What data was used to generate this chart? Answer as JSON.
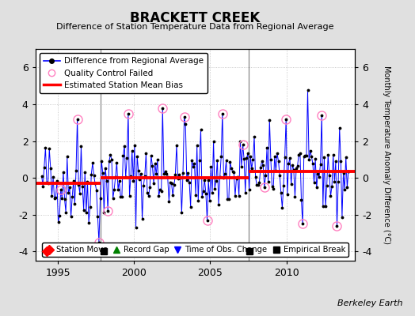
{
  "title": "BRACKETT CREEK",
  "subtitle": "Difference of Station Temperature Data from Regional Average",
  "ylabel_right": "Monthly Temperature Anomaly Difference (°C)",
  "credit": "Berkeley Earth",
  "xlim": [
    1993.5,
    2014.5
  ],
  "ylim": [
    -4.5,
    7.0
  ],
  "yticks": [
    -4,
    -2,
    0,
    2,
    4,
    6
  ],
  "xticks": [
    1995,
    2000,
    2005,
    2010
  ],
  "bg_color": "#e0e0e0",
  "plot_bg_color": "#ffffff",
  "bias_segments": [
    {
      "x_start": 1993.5,
      "x_end": 1997.8,
      "bias": -0.3
    },
    {
      "x_start": 1997.8,
      "x_end": 2007.5,
      "bias": 0.0
    },
    {
      "x_start": 2007.5,
      "x_end": 2014.5,
      "bias": 0.35
    }
  ],
  "vertical_lines": [
    1997.8,
    2007.5
  ],
  "empirical_breaks": [
    1998.0,
    2007.6
  ],
  "station_move": [
    1994.25
  ],
  "seed": 42
}
